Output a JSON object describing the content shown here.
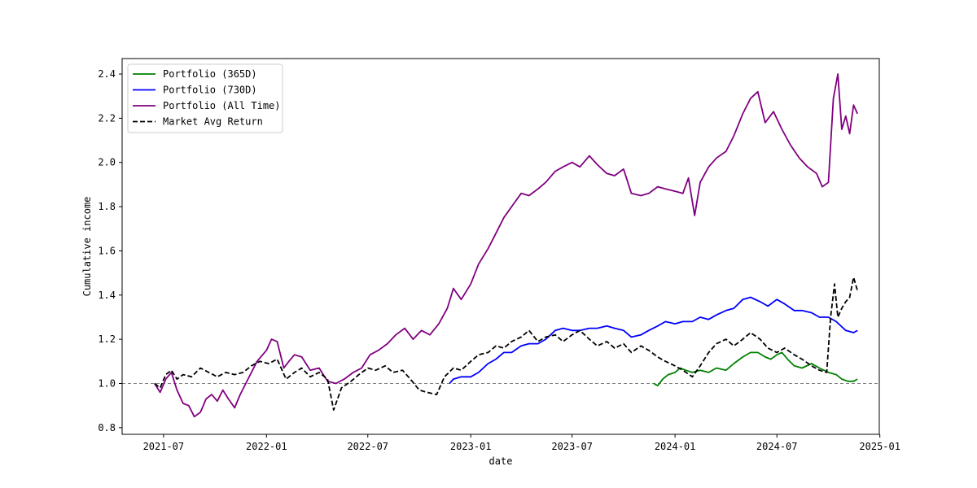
{
  "chart_data": {
    "type": "line",
    "title": "",
    "xlabel": "date",
    "ylabel": "Cumulative income",
    "xlim": [
      "2021-04-18",
      "2024-12-31"
    ],
    "ylim": [
      0.77,
      2.47
    ],
    "x_ticks": [
      "2021-07-01",
      "2022-01-01",
      "2022-07-01",
      "2023-01-01",
      "2023-07-01",
      "2024-01-01",
      "2024-07-01",
      "2025-01-01"
    ],
    "x_tick_labels": [
      "2021-07",
      "2022-01",
      "2022-07",
      "2023-01",
      "2023-07",
      "2024-01",
      "2024-07",
      "2025-01"
    ],
    "y_ticks": [
      0.8,
      1.0,
      1.2,
      1.4,
      1.6,
      1.8,
      2.0,
      2.2,
      2.4
    ],
    "y_tick_labels": [
      "0.8",
      "1.0",
      "1.2",
      "1.4",
      "1.6",
      "1.8",
      "2.0",
      "2.2",
      "2.4"
    ],
    "reference_line": {
      "y": 1.0,
      "color": "#808080",
      "style": "dashed"
    },
    "legend": {
      "placement": "top-left"
    },
    "grid": false,
    "series": [
      {
        "name": "Portfolio (365D)",
        "color": "#008000",
        "style": "solid",
        "points": [
          [
            "2023-11-24",
            1.0
          ],
          [
            "2023-12-01",
            0.99
          ],
          [
            "2023-12-10",
            1.02
          ],
          [
            "2023-12-20",
            1.04
          ],
          [
            "2024-01-01",
            1.05
          ],
          [
            "2024-01-10",
            1.07
          ],
          [
            "2024-01-20",
            1.06
          ],
          [
            "2024-02-01",
            1.05
          ],
          [
            "2024-02-15",
            1.06
          ],
          [
            "2024-03-01",
            1.05
          ],
          [
            "2024-03-15",
            1.07
          ],
          [
            "2024-04-01",
            1.06
          ],
          [
            "2024-04-15",
            1.09
          ],
          [
            "2024-05-01",
            1.12
          ],
          [
            "2024-05-15",
            1.14
          ],
          [
            "2024-05-28",
            1.14
          ],
          [
            "2024-06-10",
            1.12
          ],
          [
            "2024-06-20",
            1.11
          ],
          [
            "2024-07-01",
            1.13
          ],
          [
            "2024-07-10",
            1.14
          ],
          [
            "2024-07-20",
            1.11
          ],
          [
            "2024-08-01",
            1.08
          ],
          [
            "2024-08-15",
            1.07
          ],
          [
            "2024-09-01",
            1.09
          ],
          [
            "2024-09-15",
            1.07
          ],
          [
            "2024-10-01",
            1.05
          ],
          [
            "2024-10-15",
            1.04
          ],
          [
            "2024-10-25",
            1.02
          ],
          [
            "2024-11-05",
            1.01
          ],
          [
            "2024-11-15",
            1.01
          ],
          [
            "2024-11-22",
            1.02
          ]
        ]
      },
      {
        "name": "Portfolio (730D)",
        "color": "#0000ff",
        "style": "solid",
        "points": [
          [
            "2022-11-24",
            1.0
          ],
          [
            "2022-12-01",
            1.02
          ],
          [
            "2022-12-15",
            1.03
          ],
          [
            "2023-01-01",
            1.03
          ],
          [
            "2023-01-15",
            1.05
          ],
          [
            "2023-02-01",
            1.09
          ],
          [
            "2023-02-15",
            1.11
          ],
          [
            "2023-03-01",
            1.14
          ],
          [
            "2023-03-15",
            1.14
          ],
          [
            "2023-04-01",
            1.17
          ],
          [
            "2023-04-15",
            1.18
          ],
          [
            "2023-05-01",
            1.18
          ],
          [
            "2023-05-15",
            1.2
          ],
          [
            "2023-06-01",
            1.24
          ],
          [
            "2023-06-15",
            1.25
          ],
          [
            "2023-07-01",
            1.24
          ],
          [
            "2023-07-15",
            1.24
          ],
          [
            "2023-08-01",
            1.25
          ],
          [
            "2023-08-15",
            1.25
          ],
          [
            "2023-09-01",
            1.26
          ],
          [
            "2023-09-15",
            1.25
          ],
          [
            "2023-10-01",
            1.24
          ],
          [
            "2023-10-15",
            1.21
          ],
          [
            "2023-11-01",
            1.22
          ],
          [
            "2023-11-15",
            1.24
          ],
          [
            "2023-12-01",
            1.26
          ],
          [
            "2023-12-15",
            1.28
          ],
          [
            "2024-01-01",
            1.27
          ],
          [
            "2024-01-15",
            1.28
          ],
          [
            "2024-02-01",
            1.28
          ],
          [
            "2024-02-15",
            1.3
          ],
          [
            "2024-03-01",
            1.29
          ],
          [
            "2024-03-15",
            1.31
          ],
          [
            "2024-04-01",
            1.33
          ],
          [
            "2024-04-15",
            1.34
          ],
          [
            "2024-05-01",
            1.38
          ],
          [
            "2024-05-15",
            1.39
          ],
          [
            "2024-06-01",
            1.37
          ],
          [
            "2024-06-15",
            1.35
          ],
          [
            "2024-07-01",
            1.38
          ],
          [
            "2024-07-15",
            1.36
          ],
          [
            "2024-08-01",
            1.33
          ],
          [
            "2024-08-15",
            1.33
          ],
          [
            "2024-09-01",
            1.32
          ],
          [
            "2024-09-15",
            1.3
          ],
          [
            "2024-10-01",
            1.3
          ],
          [
            "2024-10-15",
            1.28
          ],
          [
            "2024-11-01",
            1.24
          ],
          [
            "2024-11-15",
            1.23
          ],
          [
            "2024-11-22",
            1.24
          ]
        ]
      },
      {
        "name": "Portfolio (All Time)",
        "color": "#800080",
        "style": "solid",
        "points": [
          [
            "2021-06-15",
            1.0
          ],
          [
            "2021-06-25",
            0.96
          ],
          [
            "2021-07-05",
            1.02
          ],
          [
            "2021-07-15",
            1.05
          ],
          [
            "2021-07-25",
            0.97
          ],
          [
            "2021-08-05",
            0.91
          ],
          [
            "2021-08-15",
            0.9
          ],
          [
            "2021-08-25",
            0.85
          ],
          [
            "2021-09-05",
            0.87
          ],
          [
            "2021-09-15",
            0.93
          ],
          [
            "2021-09-25",
            0.95
          ],
          [
            "2021-10-05",
            0.92
          ],
          [
            "2021-10-15",
            0.97
          ],
          [
            "2021-10-25",
            0.93
          ],
          [
            "2021-11-05",
            0.89
          ],
          [
            "2021-11-15",
            0.95
          ],
          [
            "2021-11-25",
            1.0
          ],
          [
            "2021-12-05",
            1.05
          ],
          [
            "2021-12-15",
            1.1
          ],
          [
            "2022-01-01",
            1.15
          ],
          [
            "2022-01-10",
            1.2
          ],
          [
            "2022-01-20",
            1.19
          ],
          [
            "2022-02-01",
            1.07
          ],
          [
            "2022-02-10",
            1.1
          ],
          [
            "2022-02-20",
            1.13
          ],
          [
            "2022-03-05",
            1.12
          ],
          [
            "2022-03-20",
            1.06
          ],
          [
            "2022-04-05",
            1.07
          ],
          [
            "2022-04-20",
            1.01
          ],
          [
            "2022-05-05",
            1.0
          ],
          [
            "2022-05-20",
            1.02
          ],
          [
            "2022-06-05",
            1.05
          ],
          [
            "2022-06-20",
            1.07
          ],
          [
            "2022-07-05",
            1.13
          ],
          [
            "2022-07-20",
            1.15
          ],
          [
            "2022-08-05",
            1.18
          ],
          [
            "2022-08-20",
            1.22
          ],
          [
            "2022-09-05",
            1.25
          ],
          [
            "2022-09-20",
            1.2
          ],
          [
            "2022-10-05",
            1.24
          ],
          [
            "2022-10-20",
            1.22
          ],
          [
            "2022-11-05",
            1.27
          ],
          [
            "2022-11-20",
            1.34
          ],
          [
            "2022-12-01",
            1.43
          ],
          [
            "2022-12-15",
            1.38
          ],
          [
            "2023-01-01",
            1.45
          ],
          [
            "2023-01-15",
            1.54
          ],
          [
            "2023-02-01",
            1.61
          ],
          [
            "2023-02-15",
            1.68
          ],
          [
            "2023-03-01",
            1.75
          ],
          [
            "2023-03-15",
            1.8
          ],
          [
            "2023-04-01",
            1.86
          ],
          [
            "2023-04-15",
            1.85
          ],
          [
            "2023-05-01",
            1.88
          ],
          [
            "2023-05-15",
            1.91
          ],
          [
            "2023-06-01",
            1.96
          ],
          [
            "2023-06-15",
            1.98
          ],
          [
            "2023-07-01",
            2.0
          ],
          [
            "2023-07-15",
            1.98
          ],
          [
            "2023-08-01",
            2.03
          ],
          [
            "2023-08-15",
            1.99
          ],
          [
            "2023-09-01",
            1.95
          ],
          [
            "2023-09-15",
            1.94
          ],
          [
            "2023-10-01",
            1.97
          ],
          [
            "2023-10-15",
            1.86
          ],
          [
            "2023-11-01",
            1.85
          ],
          [
            "2023-11-15",
            1.86
          ],
          [
            "2023-12-01",
            1.89
          ],
          [
            "2023-12-15",
            1.88
          ],
          [
            "2024-01-01",
            1.87
          ],
          [
            "2024-01-15",
            1.86
          ],
          [
            "2024-01-25",
            1.93
          ],
          [
            "2024-02-05",
            1.76
          ],
          [
            "2024-02-15",
            1.91
          ],
          [
            "2024-03-01",
            1.98
          ],
          [
            "2024-03-15",
            2.02
          ],
          [
            "2024-04-01",
            2.05
          ],
          [
            "2024-04-15",
            2.12
          ],
          [
            "2024-05-01",
            2.22
          ],
          [
            "2024-05-15",
            2.29
          ],
          [
            "2024-05-28",
            2.32
          ],
          [
            "2024-06-10",
            2.18
          ],
          [
            "2024-06-25",
            2.23
          ],
          [
            "2024-07-10",
            2.15
          ],
          [
            "2024-07-25",
            2.08
          ],
          [
            "2024-08-10",
            2.02
          ],
          [
            "2024-08-25",
            1.98
          ],
          [
            "2024-09-10",
            1.95
          ],
          [
            "2024-09-20",
            1.89
          ],
          [
            "2024-10-01",
            1.91
          ],
          [
            "2024-10-10",
            2.29
          ],
          [
            "2024-10-18",
            2.4
          ],
          [
            "2024-10-25",
            2.15
          ],
          [
            "2024-11-01",
            2.21
          ],
          [
            "2024-11-08",
            2.13
          ],
          [
            "2024-11-15",
            2.26
          ],
          [
            "2024-11-22",
            2.22
          ]
        ]
      },
      {
        "name": "Market Avg Return",
        "color": "#000000",
        "style": "dashed",
        "points": [
          [
            "2021-06-15",
            1.0
          ],
          [
            "2021-06-25",
            0.98
          ],
          [
            "2021-07-05",
            1.04
          ],
          [
            "2021-07-15",
            1.06
          ],
          [
            "2021-07-25",
            1.02
          ],
          [
            "2021-08-05",
            1.04
          ],
          [
            "2021-08-20",
            1.03
          ],
          [
            "2021-09-05",
            1.07
          ],
          [
            "2021-09-20",
            1.05
          ],
          [
            "2021-10-05",
            1.03
          ],
          [
            "2021-10-20",
            1.05
          ],
          [
            "2021-11-05",
            1.04
          ],
          [
            "2021-11-20",
            1.05
          ],
          [
            "2021-12-05",
            1.08
          ],
          [
            "2021-12-20",
            1.1
          ],
          [
            "2022-01-05",
            1.09
          ],
          [
            "2022-01-20",
            1.11
          ],
          [
            "2022-02-05",
            1.02
          ],
          [
            "2022-02-20",
            1.05
          ],
          [
            "2022-03-05",
            1.07
          ],
          [
            "2022-03-20",
            1.03
          ],
          [
            "2022-04-05",
            1.05
          ],
          [
            "2022-04-20",
            1.02
          ],
          [
            "2022-05-01",
            0.88
          ],
          [
            "2022-05-15",
            0.98
          ],
          [
            "2022-06-01",
            1.01
          ],
          [
            "2022-06-15",
            1.04
          ],
          [
            "2022-07-01",
            1.07
          ],
          [
            "2022-07-15",
            1.06
          ],
          [
            "2022-08-01",
            1.08
          ],
          [
            "2022-08-15",
            1.05
          ],
          [
            "2022-09-01",
            1.06
          ],
          [
            "2022-09-15",
            1.02
          ],
          [
            "2022-10-01",
            0.97
          ],
          [
            "2022-10-15",
            0.96
          ],
          [
            "2022-11-01",
            0.95
          ],
          [
            "2022-11-15",
            1.03
          ],
          [
            "2022-12-01",
            1.07
          ],
          [
            "2022-12-15",
            1.06
          ],
          [
            "2023-01-01",
            1.1
          ],
          [
            "2023-01-15",
            1.13
          ],
          [
            "2023-02-01",
            1.14
          ],
          [
            "2023-02-15",
            1.17
          ],
          [
            "2023-03-01",
            1.16
          ],
          [
            "2023-03-15",
            1.19
          ],
          [
            "2023-04-01",
            1.21
          ],
          [
            "2023-04-15",
            1.24
          ],
          [
            "2023-05-01",
            1.19
          ],
          [
            "2023-05-15",
            1.21
          ],
          [
            "2023-06-01",
            1.22
          ],
          [
            "2023-06-15",
            1.19
          ],
          [
            "2023-07-01",
            1.22
          ],
          [
            "2023-07-15",
            1.24
          ],
          [
            "2023-08-01",
            1.2
          ],
          [
            "2023-08-15",
            1.17
          ],
          [
            "2023-09-01",
            1.19
          ],
          [
            "2023-09-15",
            1.16
          ],
          [
            "2023-10-01",
            1.18
          ],
          [
            "2023-10-15",
            1.14
          ],
          [
            "2023-11-01",
            1.17
          ],
          [
            "2023-11-15",
            1.15
          ],
          [
            "2023-12-01",
            1.12
          ],
          [
            "2023-12-15",
            1.1
          ],
          [
            "2024-01-01",
            1.08
          ],
          [
            "2024-01-15",
            1.06
          ],
          [
            "2024-02-01",
            1.03
          ],
          [
            "2024-02-15",
            1.08
          ],
          [
            "2024-03-01",
            1.14
          ],
          [
            "2024-03-15",
            1.18
          ],
          [
            "2024-04-01",
            1.2
          ],
          [
            "2024-04-15",
            1.17
          ],
          [
            "2024-05-01",
            1.2
          ],
          [
            "2024-05-15",
            1.23
          ],
          [
            "2024-06-01",
            1.2
          ],
          [
            "2024-06-15",
            1.16
          ],
          [
            "2024-07-01",
            1.14
          ],
          [
            "2024-07-15",
            1.16
          ],
          [
            "2024-08-01",
            1.13
          ],
          [
            "2024-08-15",
            1.11
          ],
          [
            "2024-09-01",
            1.08
          ],
          [
            "2024-09-15",
            1.06
          ],
          [
            "2024-09-28",
            1.05
          ],
          [
            "2024-10-05",
            1.3
          ],
          [
            "2024-10-12",
            1.45
          ],
          [
            "2024-10-18",
            1.3
          ],
          [
            "2024-10-25",
            1.34
          ],
          [
            "2024-11-01",
            1.37
          ],
          [
            "2024-11-08",
            1.39
          ],
          [
            "2024-11-15",
            1.48
          ],
          [
            "2024-11-22",
            1.42
          ]
        ]
      }
    ]
  }
}
